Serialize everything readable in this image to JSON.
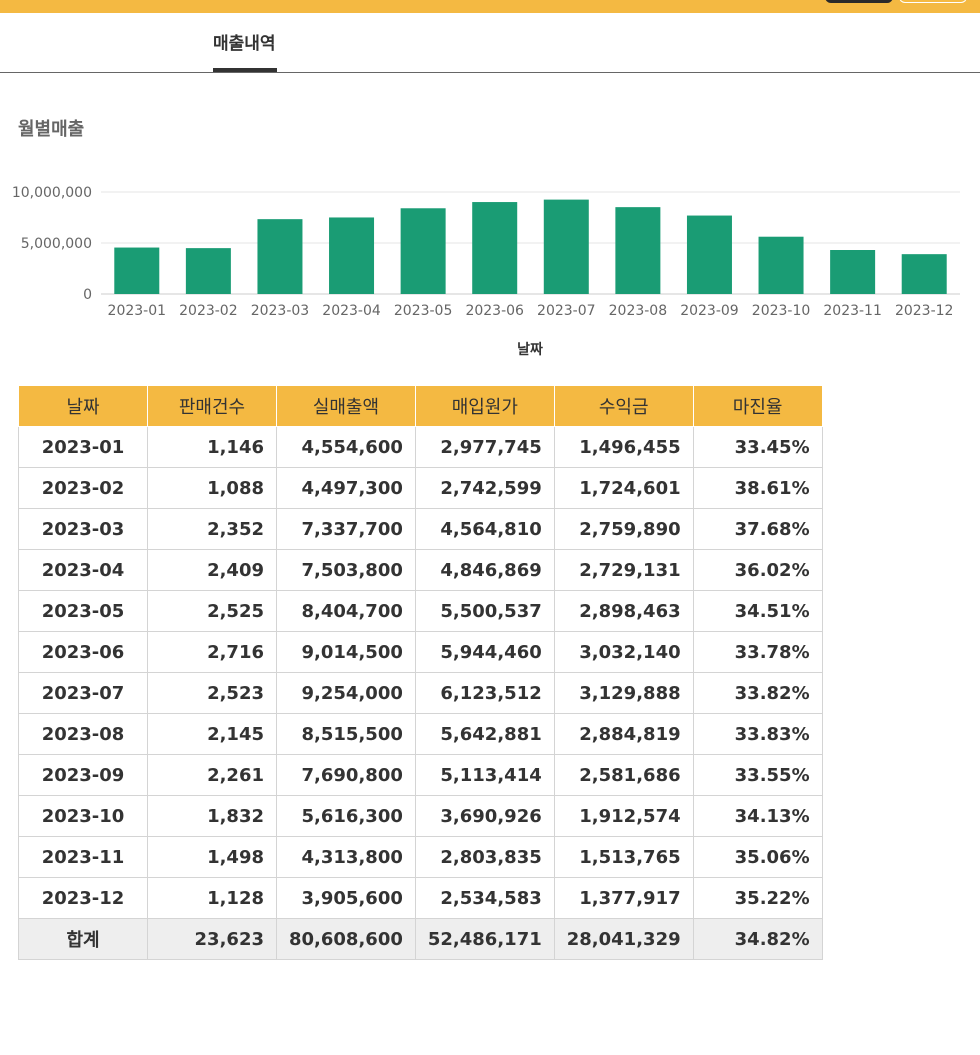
{
  "tabs": {
    "active": "매출내역"
  },
  "section_title": "월별매출",
  "chart_data": {
    "type": "bar",
    "title": "",
    "xlabel": "날짜",
    "ylabel": "",
    "ylim": [
      0,
      10000000
    ],
    "yticks": [
      "10,000,000",
      "5,000,000",
      "0"
    ],
    "grid": true,
    "bar_color": "#1a9c74",
    "categories": [
      "2023-01",
      "2023-02",
      "2023-03",
      "2023-04",
      "2023-05",
      "2023-06",
      "2023-07",
      "2023-08",
      "2023-09",
      "2023-10",
      "2023-11",
      "2023-12"
    ],
    "values": [
      4554600,
      4497300,
      7337700,
      7503800,
      8404700,
      9014500,
      9254000,
      8515500,
      7690800,
      5616300,
      4313800,
      3905600
    ]
  },
  "table": {
    "headers": [
      "날짜",
      "판매건수",
      "실매출액",
      "매입원가",
      "수익금",
      "마진율"
    ],
    "rows": [
      [
        "2023-01",
        "1,146",
        "4,554,600",
        "2,977,745",
        "1,496,455",
        "33.45%"
      ],
      [
        "2023-02",
        "1,088",
        "4,497,300",
        "2,742,599",
        "1,724,601",
        "38.61%"
      ],
      [
        "2023-03",
        "2,352",
        "7,337,700",
        "4,564,810",
        "2,759,890",
        "37.68%"
      ],
      [
        "2023-04",
        "2,409",
        "7,503,800",
        "4,846,869",
        "2,729,131",
        "36.02%"
      ],
      [
        "2023-05",
        "2,525",
        "8,404,700",
        "5,500,537",
        "2,898,463",
        "34.51%"
      ],
      [
        "2023-06",
        "2,716",
        "9,014,500",
        "5,944,460",
        "3,032,140",
        "33.78%"
      ],
      [
        "2023-07",
        "2,523",
        "9,254,000",
        "6,123,512",
        "3,129,888",
        "33.82%"
      ],
      [
        "2023-08",
        "2,145",
        "8,515,500",
        "5,642,881",
        "2,884,819",
        "33.83%"
      ],
      [
        "2023-09",
        "2,261",
        "7,690,800",
        "5,113,414",
        "2,581,686",
        "33.55%"
      ],
      [
        "2023-10",
        "1,832",
        "5,616,300",
        "3,690,926",
        "1,912,574",
        "34.13%"
      ],
      [
        "2023-11",
        "1,498",
        "4,313,800",
        "2,803,835",
        "1,513,765",
        "35.06%"
      ],
      [
        "2023-12",
        "1,128",
        "3,905,600",
        "2,534,583",
        "1,377,917",
        "35.22%"
      ]
    ],
    "total": [
      "합계",
      "23,623",
      "80,608,600",
      "52,486,171",
      "28,041,329",
      "34.82%"
    ]
  },
  "colors": {
    "accent": "#f4b942",
    "bar": "#1a9c74",
    "total_bg": "#eeeeee"
  }
}
